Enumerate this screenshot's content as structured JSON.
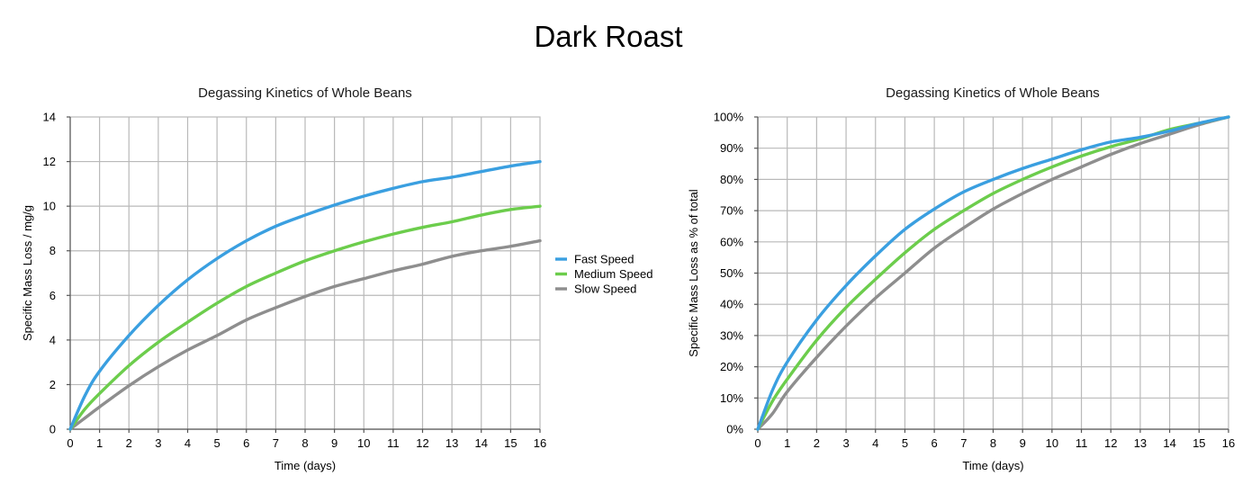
{
  "page_title": "Dark Roast",
  "legend": {
    "items": [
      {
        "label": "Fast Speed",
        "color": "#3a9fe0"
      },
      {
        "label": "Medium Speed",
        "color": "#6ccd4c"
      },
      {
        "label": "Slow Speed",
        "color": "#8e8e8e"
      }
    ]
  },
  "chart_data": [
    {
      "type": "line",
      "title": "Degassing Kinetics of Whole Beans",
      "xlabel": "Time (days)",
      "ylabel": "Specific Mass Loss / mg/g",
      "xlim": [
        0,
        16
      ],
      "ylim": [
        0,
        14
      ],
      "x_ticks": [
        "0",
        "1",
        "2",
        "3",
        "4",
        "5",
        "6",
        "7",
        "8",
        "9",
        "10",
        "11",
        "12",
        "13",
        "14",
        "15",
        "16"
      ],
      "y_ticks": [
        "0",
        "2",
        "4",
        "6",
        "8",
        "10",
        "12",
        "14"
      ],
      "grid": true,
      "legend_position": "right",
      "x": [
        0,
        0.5,
        1,
        2,
        3,
        4,
        5,
        6,
        7,
        8,
        9,
        10,
        11,
        12,
        13,
        14,
        15,
        16
      ],
      "series": [
        {
          "name": "Fast Speed",
          "color": "#3a9fe0",
          "values": [
            0,
            1.5,
            2.6,
            4.2,
            5.55,
            6.7,
            7.65,
            8.45,
            9.1,
            9.6,
            10.05,
            10.45,
            10.8,
            11.1,
            11.3,
            11.55,
            11.8,
            12.0
          ]
        },
        {
          "name": "Medium Speed",
          "color": "#6ccd4c",
          "values": [
            0,
            0.9,
            1.6,
            2.85,
            3.9,
            4.8,
            5.65,
            6.4,
            7.0,
            7.55,
            8.0,
            8.4,
            8.75,
            9.05,
            9.3,
            9.6,
            9.85,
            10.0
          ]
        },
        {
          "name": "Slow Speed",
          "color": "#8e8e8e",
          "values": [
            0,
            0.5,
            1.0,
            1.95,
            2.8,
            3.55,
            4.2,
            4.9,
            5.45,
            5.95,
            6.4,
            6.75,
            7.1,
            7.4,
            7.75,
            8.0,
            8.2,
            8.45
          ]
        }
      ]
    },
    {
      "type": "line",
      "title": "Degassing Kinetics of Whole Beans",
      "xlabel": "Time (days)",
      "ylabel": "Specific Mass Loss as % of total",
      "xlim": [
        0,
        16
      ],
      "ylim": [
        0,
        100
      ],
      "x_ticks": [
        "0",
        "1",
        "2",
        "3",
        "4",
        "5",
        "6",
        "7",
        "8",
        "9",
        "10",
        "11",
        "12",
        "13",
        "14",
        "15",
        "16"
      ],
      "y_ticks": [
        "0%",
        "10%",
        "20%",
        "30%",
        "40%",
        "50%",
        "60%",
        "70%",
        "80%",
        "90%",
        "100%"
      ],
      "grid": true,
      "x": [
        0,
        0.5,
        1,
        2,
        3,
        4,
        5,
        6,
        7,
        8,
        9,
        10,
        11,
        12,
        13,
        14,
        15,
        16
      ],
      "series": [
        {
          "name": "Fast Speed",
          "color": "#3a9fe0",
          "values": [
            0,
            12.5,
            21.5,
            35,
            46,
            55.5,
            64,
            70.5,
            76,
            80,
            83.5,
            86.5,
            89.5,
            92,
            93.5,
            95.5,
            98,
            100
          ]
        },
        {
          "name": "Medium Speed",
          "color": "#6ccd4c",
          "values": [
            0,
            9,
            16,
            28.5,
            39,
            48,
            56.5,
            64,
            70,
            75.5,
            80,
            84,
            87.5,
            90.5,
            93,
            96,
            98,
            100
          ]
        },
        {
          "name": "Slow Speed",
          "color": "#8e8e8e",
          "values": [
            0,
            5,
            12,
            23,
            33,
            42,
            50,
            58,
            64.5,
            70.5,
            75.5,
            80,
            84,
            88,
            91.5,
            94.5,
            97.5,
            100
          ]
        }
      ]
    }
  ]
}
